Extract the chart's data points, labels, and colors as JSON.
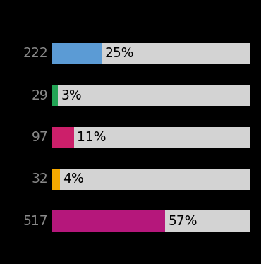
{
  "categories": [
    "222",
    "29",
    "97",
    "32",
    "517"
  ],
  "percentages": [
    25,
    3,
    11,
    4,
    57
  ],
  "labels": [
    "25%",
    "3%",
    "11%",
    "4%",
    "57%"
  ],
  "bar_colors": [
    "#5B9BD5",
    "#22A455",
    "#CC1F6A",
    "#F5A800",
    "#B5177B"
  ],
  "bg_color": "#D3D3D3",
  "background": "#000000",
  "bar_height": 0.5,
  "label_fontsize": 13.5,
  "pct_fontsize": 13.5,
  "figsize": [
    3.7,
    3.74
  ],
  "dpi": 100
}
